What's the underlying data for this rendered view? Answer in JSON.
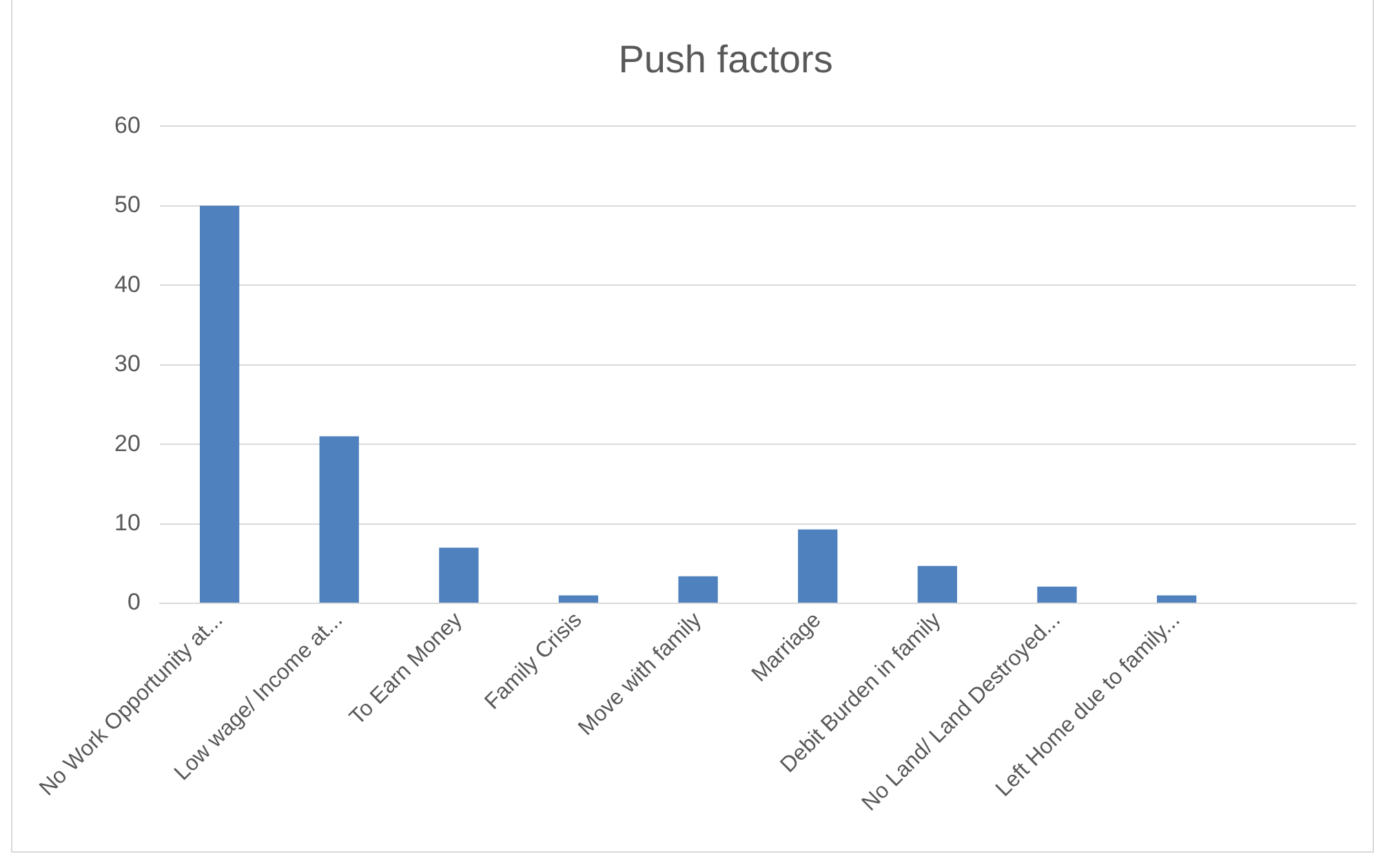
{
  "chart_data": {
    "type": "bar",
    "title": "Push factors",
    "categories": [
      "No Work Opportunity at...",
      "Low wage/ Income at...",
      "To Earn Money",
      "Family Crisis",
      "Move with family",
      "Marriage",
      "Debit Burden in family",
      "No Land/ Land Destroyed...",
      "Left Home due to family...",
      null
    ],
    "values": [
      50,
      21,
      7,
      1,
      3.4,
      9.3,
      4.7,
      2.1,
      1,
      null
    ],
    "color": "#4e81bd",
    "ylim": [
      0,
      60
    ],
    "yticks": [
      0,
      10,
      20,
      30,
      40,
      50,
      60
    ],
    "grid": "y",
    "legend": false
  }
}
